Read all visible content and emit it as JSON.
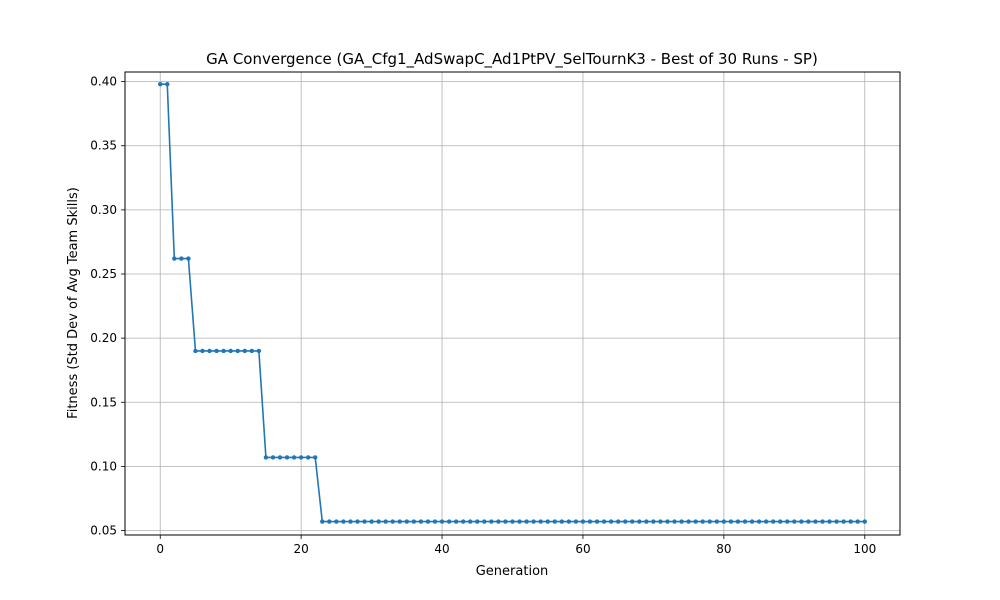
{
  "chart_data": {
    "type": "line",
    "title": "GA Convergence (GA_Cfg1_AdSwapC_Ad1PtPV_SelTournK3 - Best of 30 Runs - SP)",
    "xlabel": "Generation",
    "ylabel": "Fitness (Std Dev of Avg Team Skills)",
    "xlim": [
      -5,
      105
    ],
    "ylim": [
      0.0465,
      0.4075
    ],
    "xticks": [
      0,
      20,
      40,
      60,
      80,
      100
    ],
    "yticks": [
      0.05,
      0.1,
      0.15,
      0.2,
      0.25,
      0.3,
      0.35,
      0.4
    ],
    "xtick_labels": [
      "0",
      "20",
      "40",
      "60",
      "80",
      "100"
    ],
    "ytick_labels": [
      "0.05",
      "0.10",
      "0.15",
      "0.20",
      "0.25",
      "0.30",
      "0.35",
      "0.40"
    ],
    "grid": true,
    "series": [
      {
        "color": "#1f77b4",
        "marker": "circle",
        "x": [
          0,
          1,
          2,
          3,
          4,
          5,
          6,
          7,
          8,
          9,
          10,
          11,
          12,
          13,
          14,
          15,
          16,
          17,
          18,
          19,
          20,
          21,
          22,
          23,
          24,
          25,
          26,
          27,
          28,
          29,
          30,
          31,
          32,
          33,
          34,
          35,
          36,
          37,
          38,
          39,
          40,
          41,
          42,
          43,
          44,
          45,
          46,
          47,
          48,
          49,
          50,
          51,
          52,
          53,
          54,
          55,
          56,
          57,
          58,
          59,
          60,
          61,
          62,
          63,
          64,
          65,
          66,
          67,
          68,
          69,
          70,
          71,
          72,
          73,
          74,
          75,
          76,
          77,
          78,
          79,
          80,
          81,
          82,
          83,
          84,
          85,
          86,
          87,
          88,
          89,
          90,
          91,
          92,
          93,
          94,
          95,
          96,
          97,
          98,
          99,
          100
        ],
        "y": [
          0.398,
          0.398,
          0.262,
          0.262,
          0.262,
          0.19,
          0.19,
          0.19,
          0.19,
          0.19,
          0.19,
          0.19,
          0.19,
          0.19,
          0.19,
          0.107,
          0.107,
          0.107,
          0.107,
          0.107,
          0.107,
          0.107,
          0.107,
          0.057,
          0.057,
          0.057,
          0.057,
          0.057,
          0.057,
          0.057,
          0.057,
          0.057,
          0.057,
          0.057,
          0.057,
          0.057,
          0.057,
          0.057,
          0.057,
          0.057,
          0.057,
          0.057,
          0.057,
          0.057,
          0.057,
          0.057,
          0.057,
          0.057,
          0.057,
          0.057,
          0.057,
          0.057,
          0.057,
          0.057,
          0.057,
          0.057,
          0.057,
          0.057,
          0.057,
          0.057,
          0.057,
          0.057,
          0.057,
          0.057,
          0.057,
          0.057,
          0.057,
          0.057,
          0.057,
          0.057,
          0.057,
          0.057,
          0.057,
          0.057,
          0.057,
          0.057,
          0.057,
          0.057,
          0.057,
          0.057,
          0.057,
          0.057,
          0.057,
          0.057,
          0.057,
          0.057,
          0.057,
          0.057,
          0.057,
          0.057,
          0.057,
          0.057,
          0.057,
          0.057,
          0.057,
          0.057,
          0.057,
          0.057,
          0.057,
          0.057,
          0.057
        ]
      }
    ]
  }
}
